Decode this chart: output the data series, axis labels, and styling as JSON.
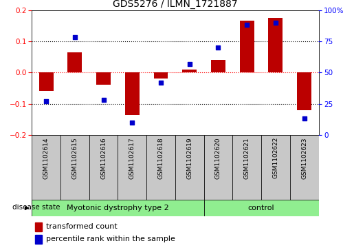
{
  "title": "GDS5276 / ILMN_1721887",
  "categories": [
    "GSM1102614",
    "GSM1102615",
    "GSM1102616",
    "GSM1102617",
    "GSM1102618",
    "GSM1102619",
    "GSM1102620",
    "GSM1102621",
    "GSM1102622",
    "GSM1102623"
  ],
  "red_values": [
    -0.06,
    0.065,
    -0.04,
    -0.135,
    -0.02,
    0.01,
    0.04,
    0.165,
    0.175,
    -0.12
  ],
  "blue_values_pct": [
    27,
    78,
    28,
    10,
    42,
    57,
    70,
    88,
    90,
    13
  ],
  "groups": [
    {
      "label": "Myotonic dystrophy type 2",
      "start": 0,
      "end": 5
    },
    {
      "label": "control",
      "start": 6,
      "end": 9
    }
  ],
  "ylim_left": [
    -0.2,
    0.2
  ],
  "ylim_right": [
    0,
    100
  ],
  "yticks_left": [
    -0.2,
    -0.1,
    0.0,
    0.1,
    0.2
  ],
  "yticks_right": [
    0,
    25,
    50,
    75,
    100
  ],
  "red_color": "#BB0000",
  "blue_color": "#0000CC",
  "legend_red_label": "transformed count",
  "legend_blue_label": "percentile rank within the sample",
  "disease_state_label": "disease state",
  "xlabel_area_color": "#C8C8C8",
  "group_color": "#90EE90",
  "bar_width": 0.5
}
